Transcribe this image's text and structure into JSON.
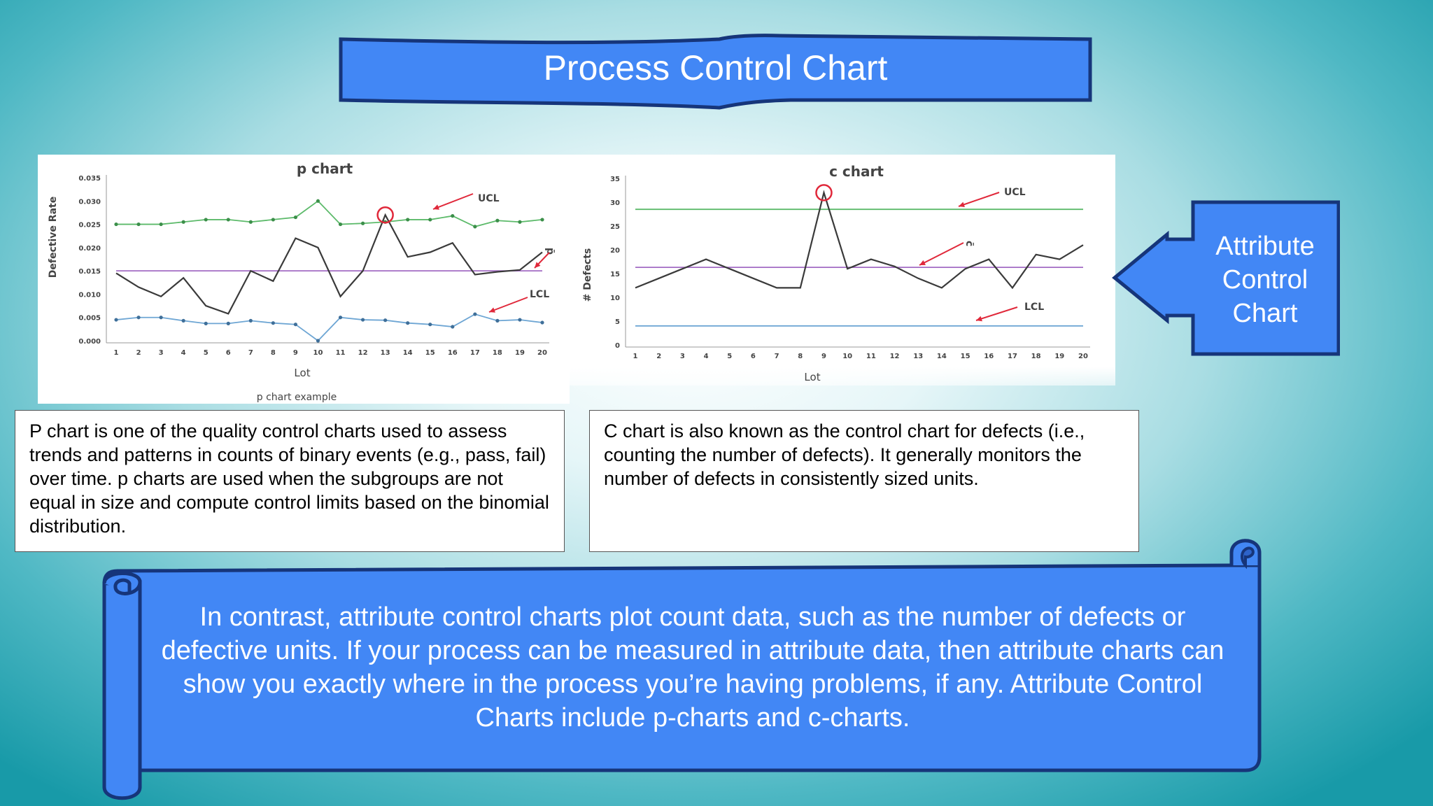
{
  "title": "Process Control Chart",
  "callout": {
    "line1": "Attribute",
    "line2": "Control",
    "line3": "Chart"
  },
  "p_description": "P chart is one of the quality control charts used to assess trends and patterns in counts of binary events (e.g., pass, fail) over time. p charts are used when the subgroups are not equal in size and compute control limits based on the binomial distribution.",
  "c_description": "C chart is also known as the control chart for defects (i.e., counting the number of defects). It generally monitors the number of defects in consistently sized units.",
  "summary": "In contrast, attribute control charts plot count data, such as the number of defects or defective units. If your process can be measured in attribute data, then attribute charts can show you exactly where in the process you’re having problems, if any. Attribute Control Charts include p-charts and c-charts.",
  "colors": {
    "banner": "#4287f5",
    "banner_border": "#16357a",
    "ucl": "#5cba6a",
    "center": "#a36cc4",
    "lcl": "#6ea6d4",
    "data": "#3a3a3a",
    "highlight": "#e0283a"
  },
  "chart_data": [
    {
      "type": "line",
      "title": "p chart",
      "caption": "p chart example",
      "xlabel": "Lot",
      "ylabel": "Defective Rate",
      "ylim": [
        0,
        0.035
      ],
      "yticks": [
        "0.000",
        "0.005",
        "0.010",
        "0.015",
        "0.020",
        "0.025",
        "0.030",
        "0.035"
      ],
      "x": [
        1,
        2,
        3,
        4,
        5,
        6,
        7,
        8,
        9,
        10,
        11,
        12,
        13,
        14,
        15,
        16,
        17,
        18,
        19,
        20
      ],
      "series": [
        {
          "name": "UCL",
          "values": [
            0.025,
            0.025,
            0.025,
            0.0255,
            0.026,
            0.026,
            0.0255,
            0.026,
            0.0265,
            0.03,
            0.025,
            0.0252,
            0.0255,
            0.026,
            0.026,
            0.0268,
            0.0245,
            0.0258,
            0.0255,
            0.026
          ]
        },
        {
          "name": "p̄",
          "values": [
            0.015,
            0.015,
            0.015,
            0.015,
            0.015,
            0.015,
            0.015,
            0.015,
            0.015,
            0.015,
            0.015,
            0.015,
            0.015,
            0.015,
            0.015,
            0.015,
            0.015,
            0.015,
            0.015,
            0.015
          ]
        },
        {
          "values": [
            0.0145,
            0.0115,
            0.0095,
            0.0135,
            0.0075,
            0.0058,
            0.015,
            0.0128,
            0.022,
            0.02,
            0.0095,
            0.015,
            0.027,
            0.018,
            0.019,
            0.021,
            0.0142,
            0.0148,
            0.0152,
            0.019
          ]
        },
        {
          "name": "LCL",
          "values": [
            0.0045,
            0.005,
            0.005,
            0.0043,
            0.0037,
            0.0037,
            0.0043,
            0.0038,
            0.0035,
            0.0,
            0.005,
            0.0045,
            0.0044,
            0.0038,
            0.0035,
            0.003,
            0.0057,
            0.0043,
            0.0045,
            0.0039
          ]
        }
      ],
      "highlight_point": {
        "x": 13,
        "y": 0.027
      },
      "annotations": [
        "UCL",
        "p̄",
        "LCL"
      ]
    },
    {
      "type": "line",
      "title": "c chart",
      "xlabel": "Lot",
      "ylabel": "# Defects",
      "ylim": [
        0,
        35
      ],
      "yticks": [
        "0",
        "5",
        "10",
        "15",
        "20",
        "25",
        "30",
        "35"
      ],
      "x": [
        1,
        2,
        3,
        4,
        5,
        6,
        7,
        8,
        9,
        10,
        11,
        12,
        13,
        14,
        15,
        16,
        17,
        18,
        19,
        20
      ],
      "series": [
        {
          "name": "UCL",
          "values": [
            28.5,
            28.5,
            28.5,
            28.5,
            28.5,
            28.5,
            28.5,
            28.5,
            28.5,
            28.5,
            28.5,
            28.5,
            28.5,
            28.5,
            28.5,
            28.5,
            28.5,
            28.5,
            28.5,
            28.5
          ]
        },
        {
          "name": "c̄",
          "values": [
            16.3,
            16.3,
            16.3,
            16.3,
            16.3,
            16.3,
            16.3,
            16.3,
            16.3,
            16.3,
            16.3,
            16.3,
            16.3,
            16.3,
            16.3,
            16.3,
            16.3,
            16.3,
            16.3,
            16.3
          ]
        },
        {
          "values": [
            12,
            14,
            16,
            18,
            16,
            14,
            12,
            12,
            32,
            16,
            18,
            16.5,
            14,
            12,
            16,
            18,
            12,
            19,
            18,
            21
          ]
        },
        {
          "name": "LCL",
          "values": [
            4,
            4,
            4,
            4,
            4,
            4,
            4,
            4,
            4,
            4,
            4,
            4,
            4,
            4,
            4,
            4,
            4,
            4,
            4,
            4
          ]
        }
      ],
      "highlight_point": {
        "x": 9,
        "y": 32
      },
      "annotations": [
        "UCL",
        "c̄",
        "LCL"
      ]
    }
  ]
}
